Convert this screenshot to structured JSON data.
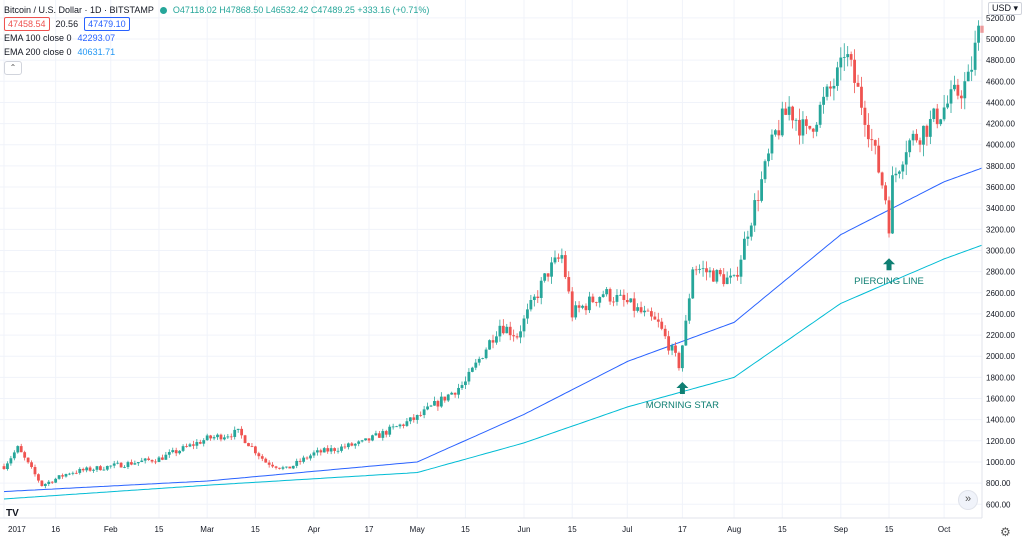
{
  "header": {
    "symbol": "Bitcoin / U.S. Dollar · 1D · BITSTAMP",
    "ohlc": "O47118.02 H47868.50 L46532.42 C47489.25 +333.16 (+0.71%)",
    "sell_price": "47458.54",
    "spread": "20.56",
    "buy_price": "47479.10",
    "ema100_label": "EMA 100 close 0",
    "ema100_value": "42293.07",
    "ema200_label": "EMA 200 close 0",
    "ema200_value": "40631.71",
    "collapse_glyph": "⌃"
  },
  "currency_label": "USD ▾",
  "scroll_glyph": "»",
  "settings_glyph": "⚙",
  "logo_text": "TV",
  "colors": {
    "up": "#26a69a",
    "down": "#ef5350",
    "ema100": "#2962ff",
    "ema200": "#00bcd4",
    "grid": "#f0f3fa"
  },
  "chart_data": {
    "type": "candlestick",
    "x_tick_labels": [
      "2017",
      "16",
      "Feb",
      "15",
      "Mar",
      "15",
      "Apr",
      "17",
      "May",
      "15",
      "Jun",
      "15",
      "Jul",
      "17",
      "Aug",
      "15",
      "Sep",
      "15",
      "Oct"
    ],
    "y_tick_labels": [
      "600.00",
      "800.00",
      "1000.00",
      "1200.00",
      "1400.00",
      "1600.00",
      "1800.00",
      "2000.00",
      "2200.00",
      "2400.00",
      "2600.00",
      "2800.00",
      "3000.00",
      "3200.00",
      "3400.00",
      "3600.00",
      "3800.00",
      "4000.00",
      "4200.00",
      "4400.00",
      "4600.00",
      "4800.00",
      "5000.00",
      "5200.00"
    ],
    "ylim": [
      470,
      5350
    ],
    "anchors": [
      [
        "2017-01-01",
        960
      ],
      [
        "2017-01-05",
        1130
      ],
      [
        "2017-01-12",
        780
      ],
      [
        "2017-01-20",
        900
      ],
      [
        "2017-02-01",
        960
      ],
      [
        "2017-02-15",
        1030
      ],
      [
        "2017-03-01",
        1220
      ],
      [
        "2017-03-10",
        1280
      ],
      [
        "2017-03-18",
        1000
      ],
      [
        "2017-03-24",
        930
      ],
      [
        "2017-04-01",
        1080
      ],
      [
        "2017-04-15",
        1180
      ],
      [
        "2017-05-01",
        1420
      ],
      [
        "2017-05-15",
        1750
      ],
      [
        "2017-05-25",
        2300
      ],
      [
        "2017-05-30",
        2200
      ],
      [
        "2017-06-08",
        2800
      ],
      [
        "2017-06-12",
        2950
      ],
      [
        "2017-06-15",
        2400
      ],
      [
        "2017-06-24",
        2600
      ],
      [
        "2017-07-01",
        2500
      ],
      [
        "2017-07-10",
        2300
      ],
      [
        "2017-07-16",
        1920
      ],
      [
        "2017-07-18",
        2300
      ],
      [
        "2017-07-20",
        2850
      ],
      [
        "2017-08-01",
        2700
      ],
      [
        "2017-08-05",
        3200
      ],
      [
        "2017-08-13",
        4100
      ],
      [
        "2017-08-17",
        4350
      ],
      [
        "2017-08-22",
        4100
      ],
      [
        "2017-09-01",
        4700
      ],
      [
        "2017-09-02",
        4900
      ],
      [
        "2017-09-08",
        4300
      ],
      [
        "2017-09-14",
        3500
      ],
      [
        "2017-09-15",
        3250
      ],
      [
        "2017-09-16",
        3650
      ],
      [
        "2017-09-20",
        4000
      ],
      [
        "2017-09-27",
        4200
      ],
      [
        "2017-10-01",
        4350
      ],
      [
        "2017-10-08",
        4600
      ],
      [
        "2017-10-12",
        5200
      ]
    ],
    "ema100_anchors": [
      [
        "2017-01-01",
        720
      ],
      [
        "2017-03-01",
        820
      ],
      [
        "2017-05-01",
        1000
      ],
      [
        "2017-06-01",
        1450
      ],
      [
        "2017-07-01",
        1950
      ],
      [
        "2017-08-01",
        2320
      ],
      [
        "2017-09-01",
        3150
      ],
      [
        "2017-10-01",
        3650
      ],
      [
        "2017-10-12",
        3780
      ]
    ],
    "ema200_anchors": [
      [
        "2017-01-01",
        650
      ],
      [
        "2017-03-01",
        780
      ],
      [
        "2017-05-01",
        900
      ],
      [
        "2017-06-01",
        1180
      ],
      [
        "2017-07-01",
        1520
      ],
      [
        "2017-08-01",
        1800
      ],
      [
        "2017-09-01",
        2500
      ],
      [
        "2017-10-01",
        2920
      ],
      [
        "2017-10-12",
        3050
      ]
    ],
    "annotations": [
      {
        "text": "MORNING STAR",
        "date": "2017-07-17",
        "price": 1700
      },
      {
        "text": "PIERCING LINE",
        "date": "2017-09-15",
        "price": 2870
      }
    ]
  }
}
